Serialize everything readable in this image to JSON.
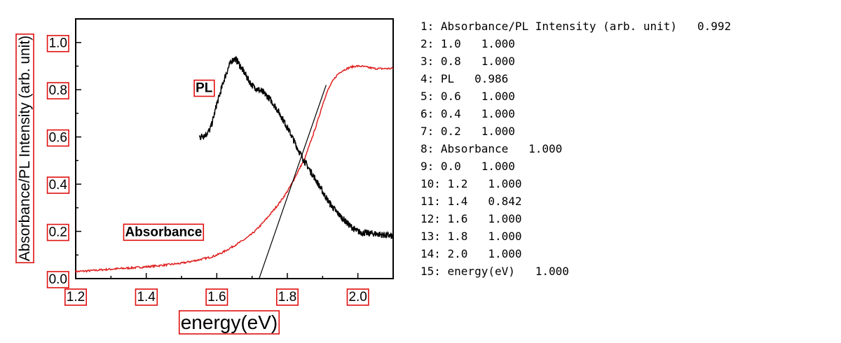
{
  "chart_data": {
    "type": "line",
    "xlabel": "energy(eV)",
    "ylabel": "Absorbance/PL Intensity (arb. unit)",
    "xlim": [
      1.2,
      2.1
    ],
    "ylim": [
      0.0,
      1.1
    ],
    "x_ticks": [
      "1.2",
      "1.4",
      "1.6",
      "1.8",
      "2.0"
    ],
    "y_ticks": [
      "0.0",
      "0.2",
      "0.4",
      "0.6",
      "0.8",
      "1.0"
    ],
    "grid": false,
    "colors": {
      "absorbance": "#e02020",
      "pl": "#000000",
      "tangent": "#000000",
      "box": "#e01010"
    },
    "annotations": [
      {
        "text": "PL",
        "x": 1.54,
        "y": 0.79
      },
      {
        "text": "Absorbance",
        "x": 1.34,
        "y": 0.18
      }
    ],
    "series": [
      {
        "name": "Absorbance",
        "x": [
          1.2,
          1.3,
          1.4,
          1.5,
          1.55,
          1.6,
          1.65,
          1.7,
          1.75,
          1.8,
          1.85,
          1.88,
          1.91,
          1.94,
          1.97,
          2.0,
          2.05,
          2.1
        ],
        "y": [
          0.03,
          0.04,
          0.05,
          0.065,
          0.08,
          0.1,
          0.14,
          0.19,
          0.27,
          0.37,
          0.51,
          0.64,
          0.78,
          0.86,
          0.89,
          0.9,
          0.89,
          0.89
        ]
      },
      {
        "name": "PL",
        "x": [
          1.55,
          1.58,
          1.6,
          1.63,
          1.65,
          1.67,
          1.7,
          1.73,
          1.76,
          1.8,
          1.84,
          1.88,
          1.92,
          1.96,
          2.0,
          2.05,
          2.1
        ],
        "y": [
          0.6,
          0.63,
          0.74,
          0.88,
          0.93,
          0.89,
          0.82,
          0.79,
          0.74,
          0.64,
          0.52,
          0.42,
          0.32,
          0.25,
          0.2,
          0.19,
          0.18
        ]
      },
      {
        "name": "Tangent",
        "x": [
          1.72,
          1.91
        ],
        "y": [
          0.0,
          0.82
        ]
      }
    ]
  },
  "ocr_lines": [
    "1: Absorbance/PL Intensity (arb. unit)   0.992",
    "2: 1.0   1.000",
    "3: 0.8   1.000",
    "4: PL   0.986",
    "5: 0.6   1.000",
    "6: 0.4   1.000",
    "7: 0.2   1.000",
    "8: Absorbance   1.000",
    "9: 0.0   1.000",
    "10: 1.2   1.000",
    "11: 1.4   0.842",
    "12: 1.6   1.000",
    "13: 1.8   1.000",
    "14: 2.0   1.000",
    "15: energy(eV)   1.000"
  ]
}
